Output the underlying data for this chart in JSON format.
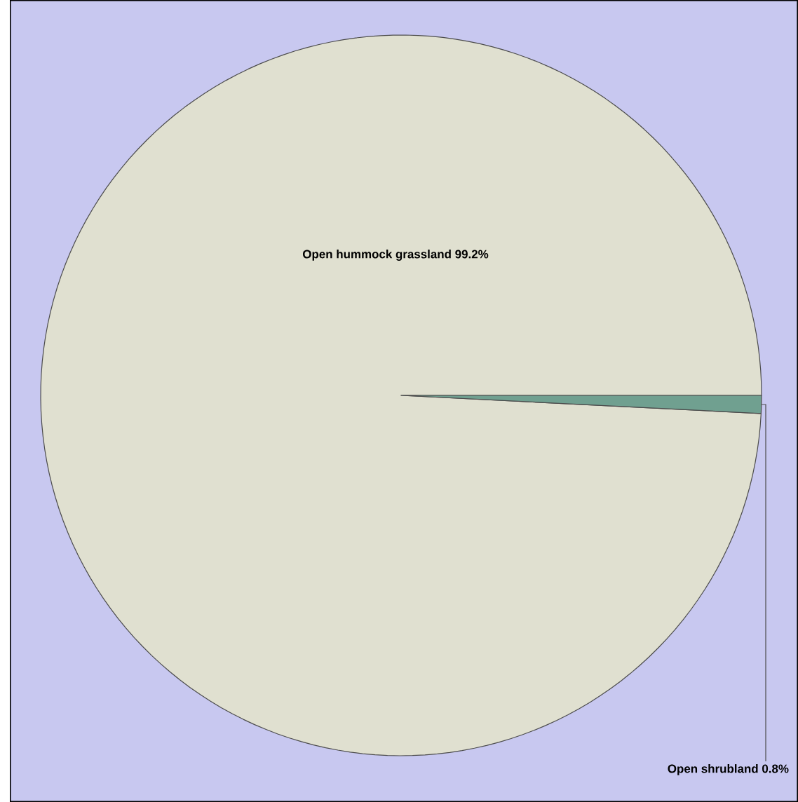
{
  "chart_data": {
    "type": "pie",
    "categories": [
      "Open hummock grassland",
      "Open shrubland"
    ],
    "values": [
      99.2,
      0.8
    ],
    "value_labels": [
      "99.2%",
      "0.8%"
    ],
    "colors": [
      "#e0e0d0",
      "#70a090"
    ]
  }
}
